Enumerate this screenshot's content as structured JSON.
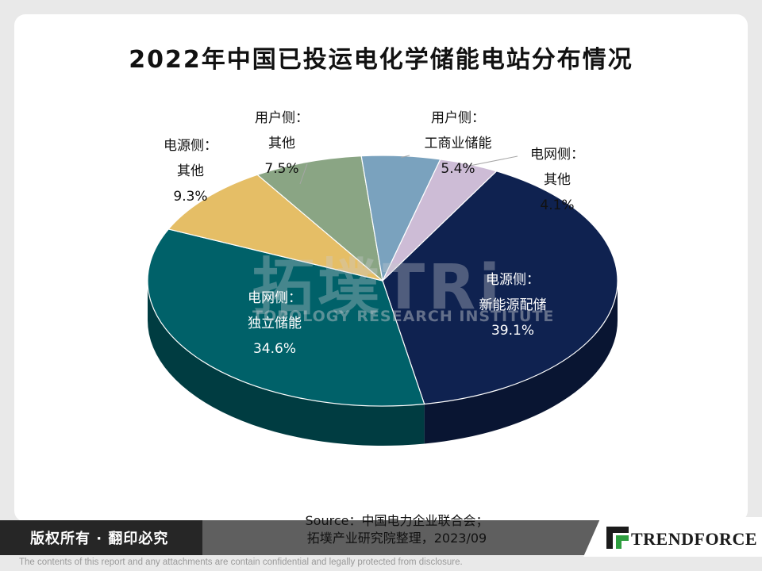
{
  "chart_data": {
    "type": "pie",
    "title": "2022年中国已投运电化学储能电站分布情况",
    "slices": [
      {
        "label": "电源侧：新能源配储",
        "lines": [
          "电源侧：",
          "新能源配储"
        ],
        "value": 39.1,
        "value_label": "39.1%",
        "color": "#0f2250"
      },
      {
        "label": "电网侧：独立储能",
        "lines": [
          "电网侧：",
          "独立储能"
        ],
        "value": 34.6,
        "value_label": "34.6%",
        "color": "#006169"
      },
      {
        "label": "电源侧：其他",
        "lines": [
          "电源侧：",
          "其他"
        ],
        "value": 9.3,
        "value_label": "9.3%",
        "color": "#e5be66"
      },
      {
        "label": "用户侧：其他",
        "lines": [
          "用户侧：",
          "其他"
        ],
        "value": 7.5,
        "value_label": "7.5%",
        "color": "#8aa584"
      },
      {
        "label": "用户侧：工商业储能",
        "lines": [
          "用户侧：",
          "工商业储能"
        ],
        "value": 5.4,
        "value_label": "5.4%",
        "color": "#7aa2be"
      },
      {
        "label": "电网侧：其他",
        "lines": [
          "电网侧：",
          "其他"
        ],
        "value": 4.1,
        "value_label": "4.1%",
        "color": "#cdbcd6"
      }
    ]
  },
  "watermark": {
    "main": "拓墣TRi",
    "sub": "TOPOLOGY RESEARCH INSTITUTE"
  },
  "source": {
    "line1": "Source：中国电力企业联合会；",
    "line2": "拓墣产业研究院整理，2023/09"
  },
  "footer": {
    "copyright": "版权所有 · 翻印必究",
    "brand": "TRENDFORCE",
    "disclaimer": "The contents of this report and any attachments are contain confidential and legally protected from disclosure."
  }
}
